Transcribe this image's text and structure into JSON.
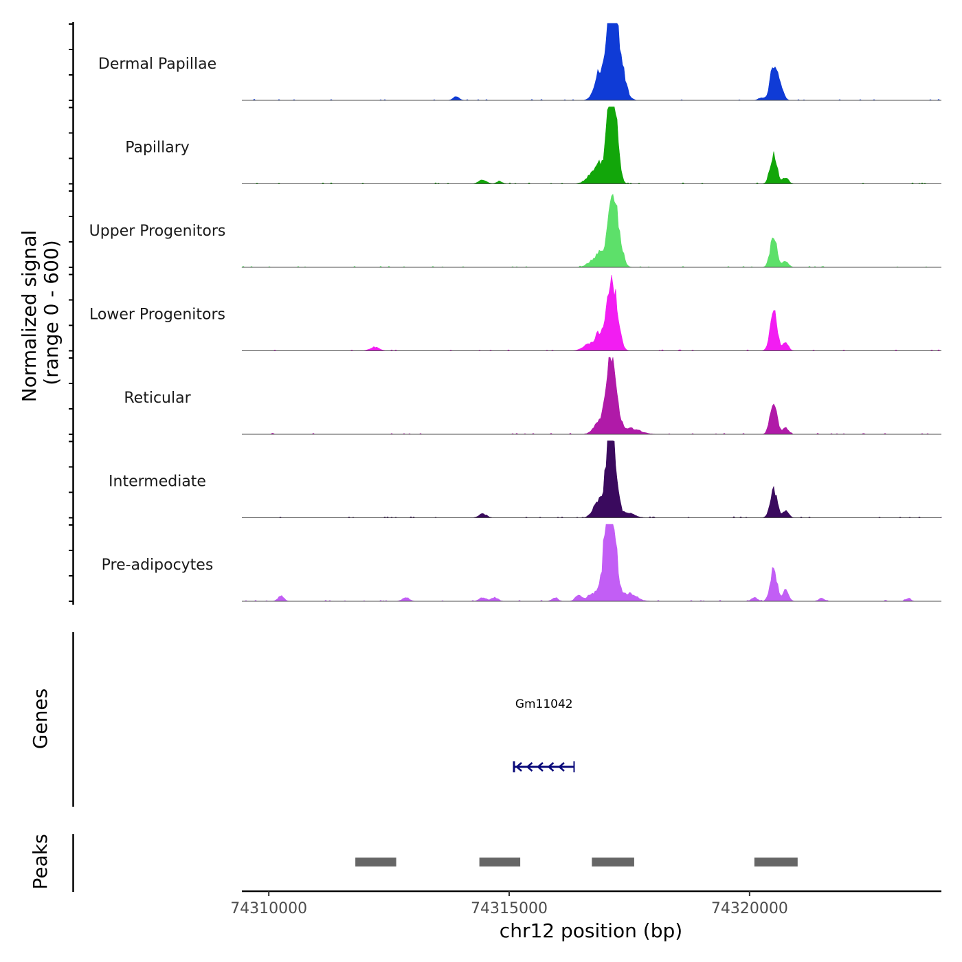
{
  "chart_data": {
    "type": "area",
    "title": "",
    "chromosome": "chr12",
    "xlabel": "chr12 position (bp)",
    "ylabel": "Normalized signal",
    "ylabel_range": "(range 0 - 600)",
    "ylim": [
      0,
      600
    ],
    "xlim": [
      74309440,
      74323990
    ],
    "x_ticks": [
      74310000,
      74315000,
      74320000
    ],
    "x_tick_labels": [
      "74310000",
      "74315000",
      "74320000"
    ],
    "series": [
      {
        "name": "Dermal Papillae",
        "color": "#0f3bd6",
        "peaks": [
          {
            "center": 74316900,
            "height": 200,
            "width": 110
          },
          {
            "center": 74317100,
            "height": 490,
            "width": 70
          },
          {
            "center": 74317170,
            "height": 420,
            "width": 90
          },
          {
            "center": 74317300,
            "height": 220,
            "width": 110
          },
          {
            "center": 74320500,
            "height": 220,
            "width": 70
          },
          {
            "center": 74320620,
            "height": 110,
            "width": 70
          },
          {
            "center": 74313900,
            "height": 25,
            "width": 60
          },
          {
            "center": 74320250,
            "height": 18,
            "width": 60
          }
        ]
      },
      {
        "name": "Papillary",
        "color": "#12a60a",
        "peaks": [
          {
            "center": 74316900,
            "height": 130,
            "width": 120
          },
          {
            "center": 74317100,
            "height": 460,
            "width": 70
          },
          {
            "center": 74317190,
            "height": 400,
            "width": 80
          },
          {
            "center": 74316700,
            "height": 40,
            "width": 120
          },
          {
            "center": 74320500,
            "height": 200,
            "width": 70
          },
          {
            "center": 74320750,
            "height": 40,
            "width": 60
          },
          {
            "center": 74314450,
            "height": 25,
            "width": 80
          },
          {
            "center": 74314800,
            "height": 15,
            "width": 60
          }
        ]
      },
      {
        "name": "Upper Progenitors",
        "color": "#5de06a",
        "peaks": [
          {
            "center": 74316900,
            "height": 90,
            "width": 100
          },
          {
            "center": 74317120,
            "height": 350,
            "width": 80
          },
          {
            "center": 74317250,
            "height": 250,
            "width": 90
          },
          {
            "center": 74316700,
            "height": 30,
            "width": 100
          },
          {
            "center": 74320500,
            "height": 200,
            "width": 70
          },
          {
            "center": 74320750,
            "height": 40,
            "width": 60
          }
        ]
      },
      {
        "name": "Lower Progenitors",
        "color": "#f21df2",
        "peaks": [
          {
            "center": 74316900,
            "height": 120,
            "width": 100
          },
          {
            "center": 74317100,
            "height": 320,
            "width": 70
          },
          {
            "center": 74317200,
            "height": 280,
            "width": 90
          },
          {
            "center": 74316650,
            "height": 40,
            "width": 120
          },
          {
            "center": 74320500,
            "height": 270,
            "width": 70
          },
          {
            "center": 74320750,
            "height": 50,
            "width": 60
          },
          {
            "center": 74312200,
            "height": 25,
            "width": 90
          }
        ]
      },
      {
        "name": "Reticular",
        "color": "#b01aa8",
        "peaks": [
          {
            "center": 74316900,
            "height": 100,
            "width": 120
          },
          {
            "center": 74317080,
            "height": 340,
            "width": 70
          },
          {
            "center": 74317180,
            "height": 300,
            "width": 90
          },
          {
            "center": 74317500,
            "height": 40,
            "width": 200
          },
          {
            "center": 74320500,
            "height": 230,
            "width": 70
          },
          {
            "center": 74320750,
            "height": 40,
            "width": 60
          }
        ]
      },
      {
        "name": "Intermediate",
        "color": "#3a0a5e",
        "peaks": [
          {
            "center": 74316870,
            "height": 120,
            "width": 110
          },
          {
            "center": 74317080,
            "height": 430,
            "width": 70
          },
          {
            "center": 74317170,
            "height": 380,
            "width": 80
          },
          {
            "center": 74317450,
            "height": 30,
            "width": 150
          },
          {
            "center": 74320500,
            "height": 190,
            "width": 70
          },
          {
            "center": 74320750,
            "height": 50,
            "width": 60
          },
          {
            "center": 74314450,
            "height": 25,
            "width": 80
          }
        ]
      },
      {
        "name": "Pre-adipocytes",
        "color": "#c25ef5",
        "peaks": [
          {
            "center": 74317050,
            "height": 520,
            "width": 80
          },
          {
            "center": 74317150,
            "height": 450,
            "width": 90
          },
          {
            "center": 74316800,
            "height": 60,
            "width": 150
          },
          {
            "center": 74317500,
            "height": 50,
            "width": 150
          },
          {
            "center": 74320500,
            "height": 210,
            "width": 70
          },
          {
            "center": 74320750,
            "height": 70,
            "width": 60
          },
          {
            "center": 74310250,
            "height": 35,
            "width": 60
          },
          {
            "center": 74312850,
            "height": 25,
            "width": 70
          },
          {
            "center": 74314450,
            "height": 25,
            "width": 70
          },
          {
            "center": 74314700,
            "height": 25,
            "width": 70
          },
          {
            "center": 74315950,
            "height": 25,
            "width": 60
          },
          {
            "center": 74316430,
            "height": 40,
            "width": 60
          },
          {
            "center": 74320100,
            "height": 25,
            "width": 60
          },
          {
            "center": 74321500,
            "height": 20,
            "width": 60
          },
          {
            "center": 74323300,
            "height": 20,
            "width": 50
          }
        ]
      }
    ],
    "genes_track": {
      "label": "Genes",
      "color": "#0a0a7a",
      "genes": [
        {
          "name": "Gm11042",
          "start": 74315100,
          "end": 74316350,
          "strand": "-"
        }
      ]
    },
    "peaks_track": {
      "label": "Peaks",
      "color": "#666666",
      "regions": [
        {
          "start": 74311800,
          "end": 74312650
        },
        {
          "start": 74314380,
          "end": 74315230
        },
        {
          "start": 74316720,
          "end": 74317600
        },
        {
          "start": 74320100,
          "end": 74321000
        }
      ]
    }
  }
}
